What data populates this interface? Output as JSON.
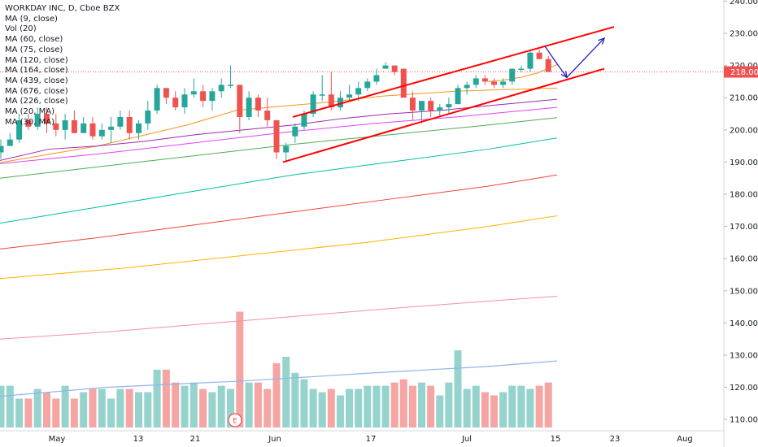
{
  "chart_data": {
    "type": "candlestick",
    "title": "WORKDAY INC, D, Cboe BZX",
    "ma_labels": [
      "MA (9, close)",
      "Vol (20)",
      "MA (60, close)",
      "MA (75, close)",
      "MA (120, close)",
      "MA (164, close)",
      "MA (439, close)",
      "MA (676, close)",
      "MA (226, close)",
      "MA (20, MA)",
      "MA (30, MA)"
    ],
    "y_ticks": [
      "110.00",
      "120.00",
      "130.00",
      "140.00",
      "150.00",
      "160.00",
      "170.00",
      "180.00",
      "190.00",
      "200.00",
      "210.00",
      "220.00",
      "230.00",
      "240.00"
    ],
    "x_ticks": [
      "May",
      "13",
      "21",
      "Jun",
      "17",
      "Jul",
      "15",
      "23",
      "Aug"
    ],
    "last_price": "218.00",
    "ylim": [
      106,
      241
    ],
    "earnings_marker": "E",
    "colors": {
      "up": "#26a69a",
      "down": "#ef5350",
      "vol_up": "#95d3cc",
      "vol_down": "#f5a5a3",
      "trend": "#ff0000",
      "arrow": "#2222bb"
    },
    "candles": [
      {
        "o": 193,
        "h": 197,
        "l": 191,
        "c": 195
      },
      {
        "o": 195,
        "h": 199,
        "l": 195,
        "c": 197
      },
      {
        "o": 197,
        "h": 205,
        "l": 196,
        "c": 203
      },
      {
        "o": 203,
        "h": 205,
        "l": 200,
        "c": 201
      },
      {
        "o": 201,
        "h": 207,
        "l": 200,
        "c": 205
      },
      {
        "o": 205,
        "h": 207,
        "l": 199,
        "c": 202
      },
      {
        "o": 202,
        "h": 205,
        "l": 198,
        "c": 200
      },
      {
        "o": 200,
        "h": 205,
        "l": 197,
        "c": 203
      },
      {
        "o": 203,
        "h": 206,
        "l": 199,
        "c": 199
      },
      {
        "o": 199,
        "h": 204,
        "l": 199,
        "c": 202
      },
      {
        "o": 202,
        "h": 204,
        "l": 197,
        "c": 198
      },
      {
        "o": 198,
        "h": 202,
        "l": 197,
        "c": 200
      },
      {
        "o": 200,
        "h": 204,
        "l": 196,
        "c": 201
      },
      {
        "o": 201,
        "h": 206,
        "l": 200,
        "c": 204
      },
      {
        "o": 204,
        "h": 206,
        "l": 197,
        "c": 199
      },
      {
        "o": 199,
        "h": 203,
        "l": 197,
        "c": 202
      },
      {
        "o": 202,
        "h": 209,
        "l": 200,
        "c": 206
      },
      {
        "o": 206,
        "h": 214,
        "l": 205,
        "c": 213
      },
      {
        "o": 213,
        "h": 213,
        "l": 208,
        "c": 210
      },
      {
        "o": 210,
        "h": 212,
        "l": 206,
        "c": 207
      },
      {
        "o": 207,
        "h": 213,
        "l": 205,
        "c": 211
      },
      {
        "o": 211,
        "h": 216,
        "l": 210,
        "c": 212
      },
      {
        "o": 212,
        "h": 214,
        "l": 207,
        "c": 209
      },
      {
        "o": 209,
        "h": 213,
        "l": 206,
        "c": 212
      },
      {
        "o": 212,
        "h": 216,
        "l": 210,
        "c": 214
      },
      {
        "o": 214,
        "h": 220,
        "l": 213,
        "c": 214
      },
      {
        "o": 214,
        "h": 214,
        "l": 199,
        "c": 204
      },
      {
        "o": 204,
        "h": 212,
        "l": 203,
        "c": 210
      },
      {
        "o": 210,
        "h": 211,
        "l": 204,
        "c": 206
      },
      {
        "o": 206,
        "h": 210,
        "l": 201,
        "c": 203
      },
      {
        "o": 203,
        "h": 203,
        "l": 191,
        "c": 193
      },
      {
        "o": 193,
        "h": 196,
        "l": 190,
        "c": 195
      },
      {
        "o": 198,
        "h": 202,
        "l": 196,
        "c": 201
      },
      {
        "o": 201,
        "h": 206,
        "l": 200,
        "c": 205
      },
      {
        "o": 205,
        "h": 212,
        "l": 204,
        "c": 211
      },
      {
        "o": 211,
        "h": 217,
        "l": 209,
        "c": 211
      },
      {
        "o": 211,
        "h": 218,
        "l": 206,
        "c": 207
      },
      {
        "o": 207,
        "h": 212,
        "l": 206,
        "c": 210
      },
      {
        "o": 210,
        "h": 214,
        "l": 209,
        "c": 211
      },
      {
        "o": 211,
        "h": 215,
        "l": 209,
        "c": 213
      },
      {
        "o": 213,
        "h": 216,
        "l": 212,
        "c": 215
      },
      {
        "o": 215,
        "h": 219,
        "l": 214,
        "c": 217
      },
      {
        "o": 219,
        "h": 221,
        "l": 219,
        "c": 220
      },
      {
        "o": 220,
        "h": 220,
        "l": 217,
        "c": 218
      },
      {
        "o": 219,
        "h": 219,
        "l": 210,
        "c": 210
      },
      {
        "o": 210,
        "h": 212,
        "l": 203,
        "c": 206
      },
      {
        "o": 206,
        "h": 209,
        "l": 202,
        "c": 209
      },
      {
        "o": 209,
        "h": 210,
        "l": 204,
        "c": 206
      },
      {
        "o": 206,
        "h": 208,
        "l": 204,
        "c": 207
      },
      {
        "o": 207,
        "h": 210,
        "l": 205,
        "c": 208
      },
      {
        "o": 208,
        "h": 214,
        "l": 208,
        "c": 213
      },
      {
        "o": 213,
        "h": 215,
        "l": 211,
        "c": 214
      },
      {
        "o": 214,
        "h": 217,
        "l": 213,
        "c": 216
      },
      {
        "o": 216,
        "h": 217,
        "l": 214,
        "c": 215
      },
      {
        "o": 215,
        "h": 216,
        "l": 213,
        "c": 214
      },
      {
        "o": 214,
        "h": 216,
        "l": 213,
        "c": 215
      },
      {
        "o": 215,
        "h": 219,
        "l": 214,
        "c": 219
      },
      {
        "o": 219,
        "h": 220,
        "l": 218,
        "c": 219
      },
      {
        "o": 219,
        "h": 225,
        "l": 218,
        "c": 224
      },
      {
        "o": 224,
        "h": 225,
        "l": 222,
        "c": 222
      },
      {
        "o": 222,
        "h": 223,
        "l": 218,
        "c": 218
      }
    ],
    "volumes": [
      16.5,
      16.5,
      12.5,
      12.5,
      15.5,
      14.5,
      12.5,
      16.5,
      12.5,
      14.5,
      15.5,
      15.5,
      12.5,
      15.5,
      15.5,
      14.5,
      14.5,
      21.5,
      21.5,
      17.5,
      16.5,
      17.5,
      15.5,
      14.5,
      16.5,
      15.5,
      39.5,
      17.5,
      17.5,
      15.5,
      23.5,
      25.5,
      20.5,
      18.5,
      15.5,
      14.5,
      15.5,
      13.5,
      15.5,
      15.5,
      16.5,
      16.5,
      16.5,
      17.5,
      18.5,
      16.5,
      17.5,
      16.5,
      13.5,
      17.5,
      27.5,
      15.5,
      16.5,
      14.5,
      13.5,
      14.5,
      16.5,
      16.5,
      15.5,
      16.5,
      17.5
    ],
    "vol_ma": [
      [
        0,
        117.2
      ],
      [
        130,
        120.0
      ],
      [
        300,
        122.0
      ],
      [
        460,
        124.5
      ],
      [
        600,
        126.5
      ],
      [
        685,
        128.2
      ]
    ],
    "ma_lines": [
      {
        "color": "#f7931a",
        "points": [
          [
            0,
            189.8
          ],
          [
            120,
            195.0
          ],
          [
            230,
            201.5
          ],
          [
            290,
            206.0
          ],
          [
            330,
            207.0
          ],
          [
            400,
            208.5
          ],
          [
            470,
            210.5
          ],
          [
            560,
            212.0
          ],
          [
            620,
            212.5
          ],
          [
            685,
            213.0
          ]
        ]
      },
      {
        "color": "#9c27b0",
        "points": [
          [
            0,
            190.5
          ],
          [
            60,
            194.0
          ],
          [
            120,
            195.0
          ],
          [
            180,
            196.5
          ],
          [
            240,
            198.5
          ],
          [
            300,
            200.0
          ],
          [
            360,
            201.5
          ],
          [
            420,
            203.5
          ],
          [
            480,
            205.0
          ],
          [
            540,
            206.0
          ],
          [
            600,
            207.5
          ],
          [
            685,
            209.5
          ]
        ]
      },
      {
        "color": "#e040fb",
        "points": [
          [
            0,
            189.5
          ],
          [
            120,
            192.5
          ],
          [
            240,
            196.0
          ],
          [
            360,
            199.5
          ],
          [
            460,
            202.0
          ],
          [
            560,
            204.0
          ],
          [
            685,
            207.0
          ]
        ]
      },
      {
        "color": "#4caf50",
        "points": [
          [
            0,
            185.0
          ],
          [
            120,
            188.5
          ],
          [
            240,
            192.0
          ],
          [
            360,
            195.5
          ],
          [
            480,
            198.5
          ],
          [
            600,
            201.5
          ],
          [
            685,
            203.8
          ]
        ]
      },
      {
        "color": "#00bfa5",
        "points": [
          [
            0,
            171.0
          ],
          [
            120,
            176.0
          ],
          [
            240,
            181.0
          ],
          [
            360,
            186.0
          ],
          [
            480,
            190.0
          ],
          [
            600,
            194.0
          ],
          [
            685,
            197.5
          ]
        ]
      },
      {
        "color": "#f44336",
        "points": [
          [
            0,
            163.0
          ],
          [
            120,
            166.5
          ],
          [
            240,
            170.5
          ],
          [
            360,
            174.5
          ],
          [
            480,
            178.5
          ],
          [
            600,
            182.5
          ],
          [
            685,
            186.0
          ]
        ]
      },
      {
        "color": "#ffb300",
        "points": [
          [
            0,
            153.8
          ],
          [
            150,
            157.0
          ],
          [
            300,
            161.0
          ],
          [
            450,
            165.0
          ],
          [
            600,
            170.0
          ],
          [
            685,
            173.3
          ]
        ]
      },
      {
        "color": "#f48fb1",
        "points": [
          [
            0,
            135.0
          ],
          [
            120,
            137.0
          ],
          [
            240,
            139.5
          ],
          [
            360,
            142.0
          ],
          [
            480,
            144.5
          ],
          [
            600,
            146.8
          ],
          [
            685,
            148.3
          ]
        ]
      },
      {
        "color": "#f7931a",
        "points": [
          [
            600,
            215.0
          ],
          [
            620,
            215.5
          ],
          [
            640,
            216.3
          ],
          [
            660,
            217.6
          ],
          [
            685,
            220.3
          ]
        ]
      }
    ],
    "trend_lines": [
      [
        [
          360,
          204.0
        ],
        [
          755,
          232.0
        ]
      ],
      [
        [
          348,
          190.0
        ],
        [
          743,
          219.0
        ]
      ]
    ],
    "arrow_points": [
      [
        670,
        226.0
      ],
      [
        685,
        220.5
      ],
      [
        697,
        216.3
      ],
      [
        743,
        228.5
      ]
    ]
  }
}
